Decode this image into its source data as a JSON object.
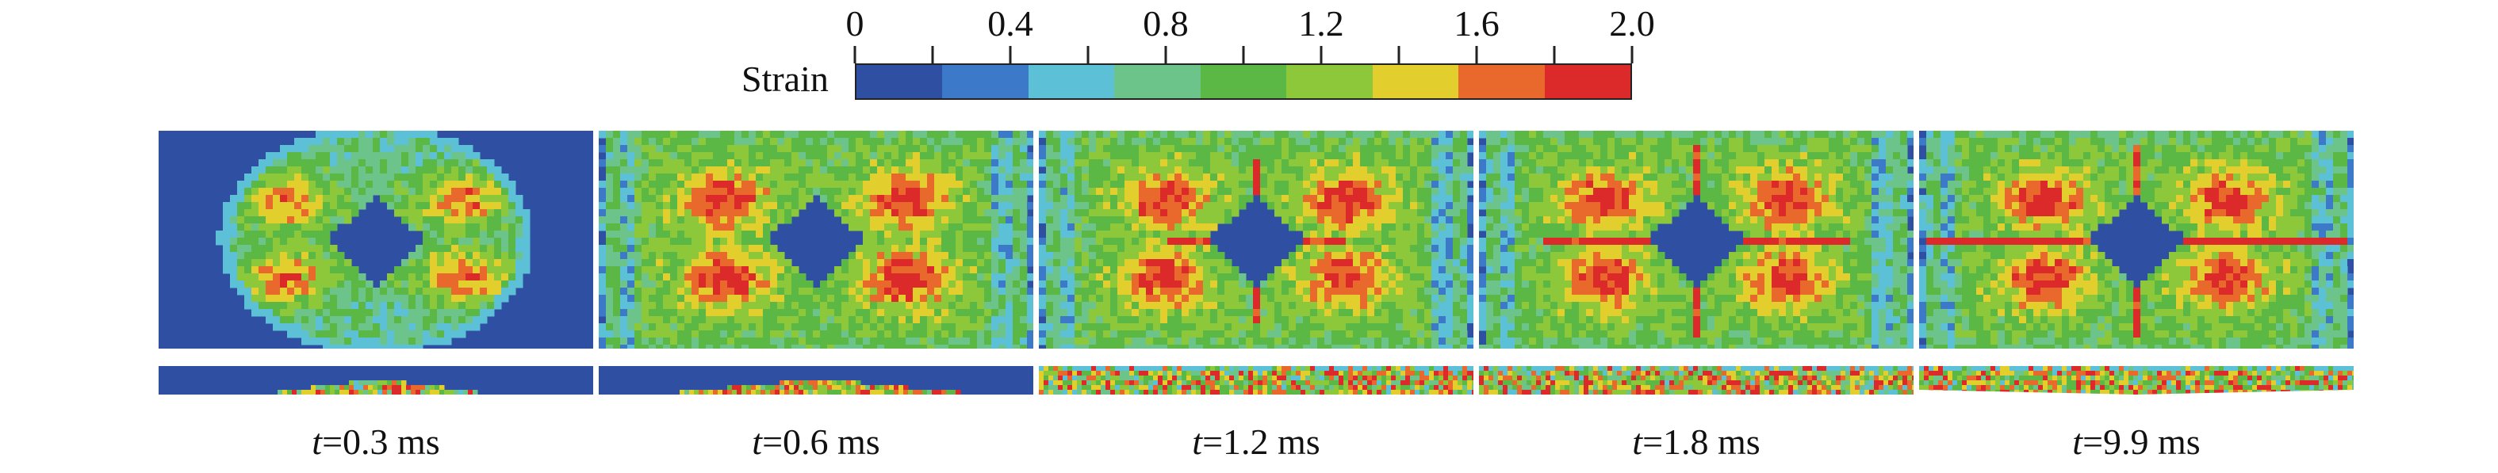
{
  "colorbar": {
    "title": "Strain",
    "tick_labels": [
      "0",
      "0.4",
      "0.8",
      "1.2",
      "1.6",
      "2.0"
    ],
    "range": [
      0,
      2.0
    ],
    "bands": [
      "#2f4fa3",
      "#3d79c9",
      "#5cc1d6",
      "#6cc48a",
      "#5bb844",
      "#8cc83a",
      "#e2cf2e",
      "#e8692b",
      "#dc2a2a"
    ]
  },
  "panels": [
    {
      "time_var": "t",
      "time_text": "=0.3 ms",
      "stage": 0
    },
    {
      "time_var": "t",
      "time_text": "=0.6 ms",
      "stage": 1
    },
    {
      "time_var": "t",
      "time_text": "=1.2 ms",
      "stage": 2
    },
    {
      "time_var": "t",
      "time_text": "=1.8 ms",
      "stage": 3
    },
    {
      "time_var": "t",
      "time_text": "=9.9 ms",
      "stage": 4
    }
  ]
}
